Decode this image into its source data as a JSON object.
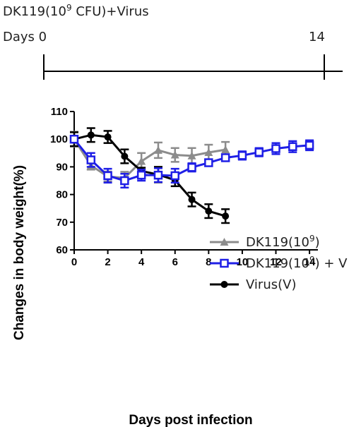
{
  "header": {
    "title_prefix": "DK119(10",
    "title_sup": "9",
    "title_suffix": " CFU)+Virus",
    "timeline_start": "Days 0",
    "timeline_end": "14"
  },
  "chart_data": {
    "type": "line",
    "xlabel": "Days post infection",
    "ylabel": "Changes in body weight(%)",
    "xlim": [
      0,
      14.5
    ],
    "ylim": [
      60,
      110
    ],
    "xticks": [
      0,
      2,
      4,
      6,
      8,
      10,
      12,
      14
    ],
    "yticks": [
      60,
      70,
      80,
      90,
      100,
      110
    ],
    "legend_position": "right-middle",
    "series": [
      {
        "name": "DK119(10^9)",
        "label_main": "DK119(10",
        "label_sup": "9",
        "label_tail": ")",
        "color": "#8c8c8c",
        "marker": "triangle",
        "x": [
          0,
          1,
          2,
          3,
          4,
          5,
          6,
          7,
          8,
          9
        ],
        "y": [
          100,
          90.5,
          86.5,
          86,
          92,
          96,
          94.3,
          94,
          95.2,
          96.2
        ],
        "err": [
          2.7,
          1.5,
          1.8,
          2.2,
          3,
          2.8,
          2.5,
          2.8,
          2.8,
          2.8
        ]
      },
      {
        "name": "DK119(10^9) + V",
        "label_main": "DK119(10",
        "label_sup": "9",
        "label_tail": ") + V",
        "color": "#1f1fe6",
        "marker": "square-open",
        "x": [
          0,
          1,
          2,
          3,
          4,
          5,
          6,
          7,
          8,
          9,
          10,
          11,
          12,
          13,
          14
        ],
        "y": [
          100,
          92.5,
          86.8,
          85,
          87,
          87,
          86.8,
          89.8,
          91.5,
          93.3,
          94.1,
          95.3,
          96.6,
          97.3,
          97.8
        ],
        "err": [
          1.2,
          2.5,
          2.5,
          2.5,
          2,
          2.5,
          2.5,
          1.5,
          1.2,
          1.2,
          1.5,
          1.5,
          2,
          2,
          1.8
        ]
      },
      {
        "name": "Virus(V)",
        "label_main": "Virus(V)",
        "label_sup": "",
        "label_tail": "",
        "color": "#000000",
        "marker": "circle",
        "x": [
          0,
          1,
          2,
          3,
          4,
          5,
          6,
          7,
          8,
          9
        ],
        "y": [
          100,
          101.5,
          100.8,
          93.8,
          88.5,
          87.2,
          85.2,
          78.2,
          74,
          72.2
        ],
        "err": [
          2.5,
          2.5,
          2.2,
          2.5,
          1.2,
          2.8,
          2.2,
          2.5,
          2.5,
          2.5
        ]
      }
    ]
  }
}
